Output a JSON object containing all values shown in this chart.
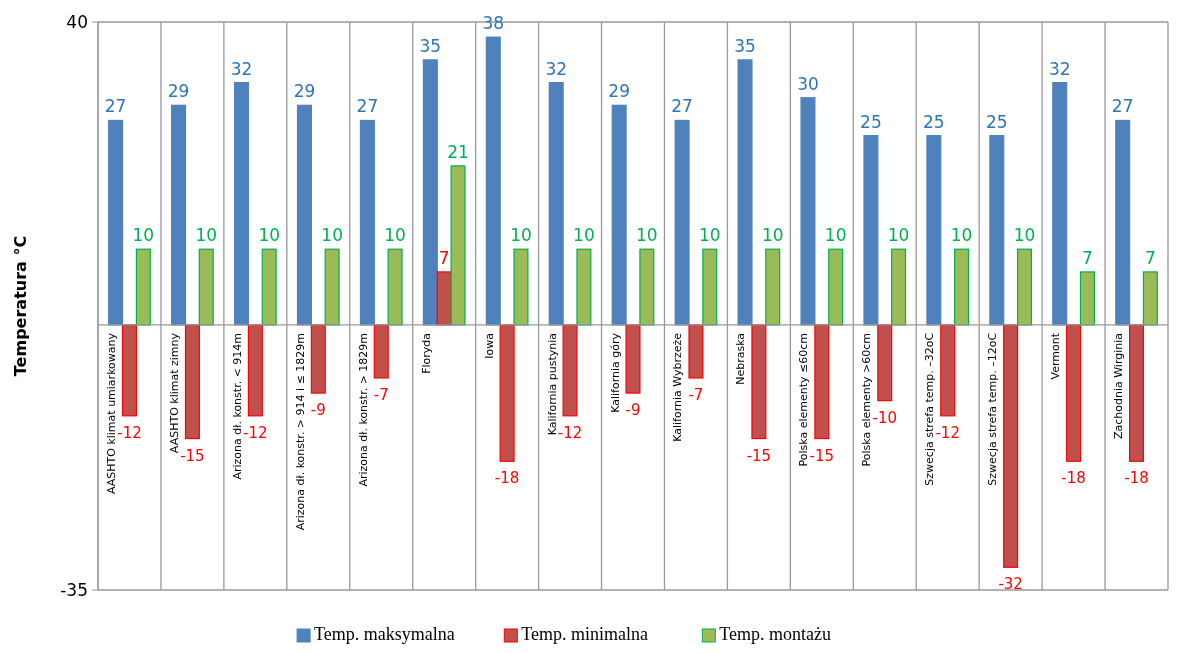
{
  "chart_data": {
    "type": "bar",
    "ylabel": "Temperatura  °C",
    "categories": [
      "AASHTO klimat umiarkowany",
      "AASHTO klimat zimny",
      "Arizona dł. konstr. < 914m",
      "Arizona dł. konstr. > 914 i ≤ 1829m",
      "Arizona dł. konstr. > 1829m",
      "Floryda",
      "Iowa",
      "Kalifornia pustynia",
      "Kalifornia góry",
      "Kalifornia Wybrzeże",
      "Nebraska",
      "Polska elementy ≤60cm",
      "Polska elementy >60cm",
      "Szwecja strefa temp. –32oC",
      "Szwecja strefa temp. –12oC",
      "Vermont",
      "Zachodnia Wirginia"
    ],
    "series": [
      {
        "name": "Temp. maksymalna",
        "color": "#4f81bd",
        "values": [
          27,
          29,
          32,
          29,
          27,
          35,
          38,
          32,
          29,
          27,
          35,
          30,
          25,
          25,
          25,
          32,
          27
        ]
      },
      {
        "name": "Temp. minimalna",
        "color": "#c0504d",
        "values": [
          -12,
          -15,
          -12,
          -9,
          -7,
          7,
          -18,
          -12,
          -9,
          -7,
          -15,
          -15,
          -10,
          -12,
          -32,
          -18,
          -18
        ]
      },
      {
        "name": "Temp. montażu",
        "color": "#9bbb59",
        "values": [
          10,
          10,
          10,
          10,
          10,
          21,
          10,
          10,
          10,
          10,
          10,
          10,
          10,
          10,
          10,
          7,
          7
        ]
      }
    ],
    "ylim": [
      -35,
      40
    ],
    "yticks": [
      -35,
      40
    ],
    "grid": "x",
    "legend": "bottom",
    "data_labels": true
  }
}
